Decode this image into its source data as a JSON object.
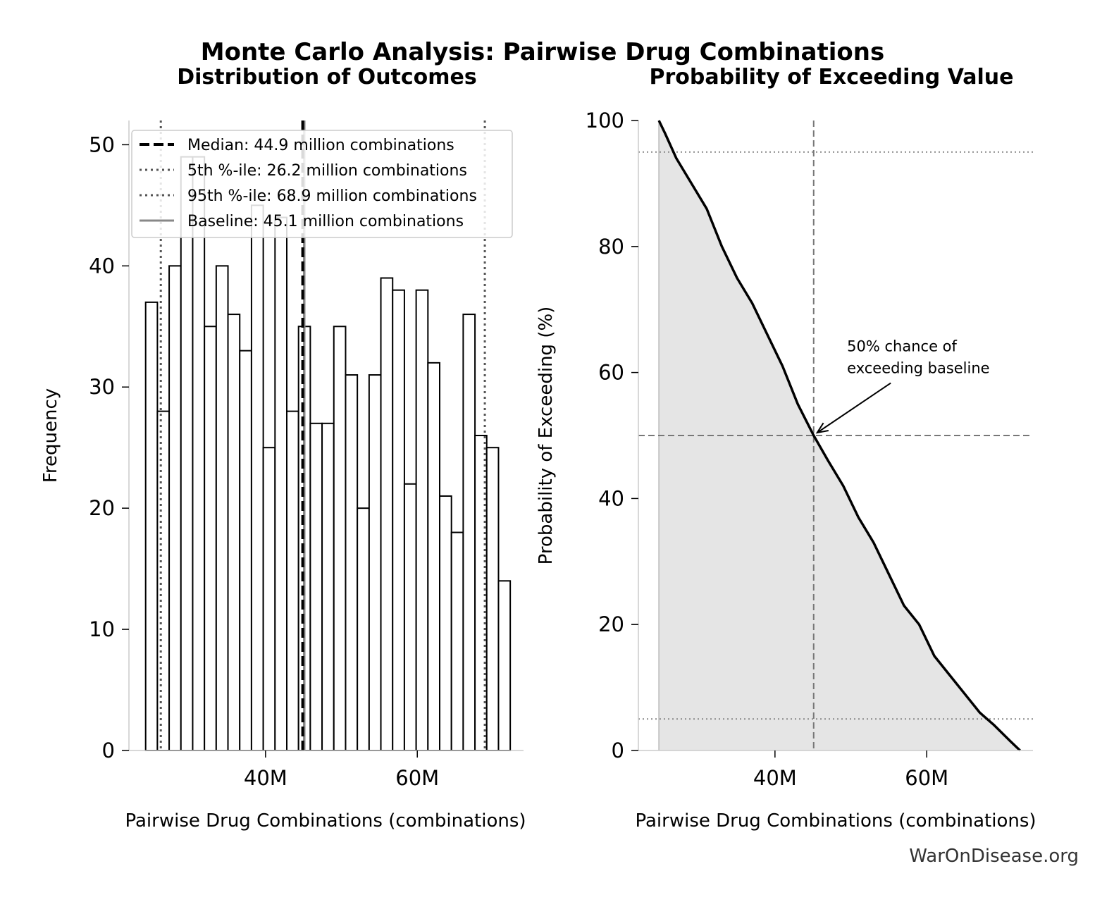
{
  "figure": {
    "title": "Monte Carlo Analysis: Pairwise Drug Combinations",
    "watermark": "WarOnDisease.org"
  },
  "chart_data": [
    {
      "type": "bar",
      "title": "Distribution of Outcomes",
      "xlabel": "Pairwise Drug Combinations (combinations)",
      "ylabel": "Frequency",
      "x_unit": "million combinations",
      "xlim": [
        22,
        74
      ],
      "ylim": [
        0,
        52
      ],
      "x_ticks": [
        40,
        60
      ],
      "x_tick_labels": [
        "40M",
        "60M"
      ],
      "y_ticks": [
        0,
        10,
        20,
        30,
        40,
        50
      ],
      "bin_width": 1.55,
      "bins_start": [
        24.2,
        25.75,
        27.3,
        28.85,
        30.4,
        31.95,
        33.5,
        35.05,
        36.6,
        38.15,
        39.7,
        41.25,
        42.8,
        44.35,
        45.9,
        47.45,
        49.0,
        50.55,
        52.1,
        53.65,
        55.2,
        56.75,
        58.3,
        59.85,
        61.4,
        62.95,
        64.5,
        66.05,
        67.6,
        69.15,
        70.7
      ],
      "values": [
        37,
        28,
        40,
        49,
        49,
        35,
        40,
        36,
        33,
        45,
        25,
        44,
        28,
        35,
        27,
        27,
        35,
        31,
        20,
        31,
        39,
        38,
        22,
        38,
        32,
        21,
        18,
        36,
        26,
        25,
        14
      ],
      "grid": false,
      "legend_position": "top-right",
      "reference_lines": [
        {
          "label": "Median: 44.9 million combinations",
          "value": 44.9,
          "style": "dashed",
          "color": "#000000"
        },
        {
          "label": "5th %-ile: 26.2 million combinations",
          "value": 26.2,
          "style": "dotted",
          "color": "#555555"
        },
        {
          "label": "95th %-ile: 68.9 million combinations",
          "value": 68.9,
          "style": "dotted",
          "color": "#555555"
        },
        {
          "label": "Baseline: 45.1 million combinations",
          "value": 45.1,
          "style": "solid",
          "color": "#888888"
        }
      ]
    },
    {
      "type": "area",
      "title": "Probability of Exceeding Value",
      "xlabel": "Pairwise Drug Combinations (combinations)",
      "ylabel": "Probability of Exceeding (%)",
      "x_unit": "million combinations",
      "xlim": [
        22,
        74
      ],
      "ylim": [
        0,
        100
      ],
      "x_ticks": [
        40,
        60
      ],
      "x_tick_labels": [
        "40M",
        "60M"
      ],
      "y_ticks": [
        0,
        20,
        40,
        60,
        80,
        100
      ],
      "grid": false,
      "x": [
        24.7,
        25.5,
        27,
        29,
        31,
        33,
        35,
        37,
        39,
        41,
        43,
        45.1,
        47,
        49,
        51,
        53,
        55,
        57,
        59,
        61,
        63,
        65,
        67,
        68.9,
        71,
        72.3
      ],
      "y": [
        100,
        98,
        94,
        90,
        86,
        80,
        75,
        71,
        66,
        61,
        55,
        50,
        46,
        42,
        37,
        33,
        28,
        23,
        20,
        15,
        12,
        9,
        6,
        4,
        1.5,
        0
      ],
      "reference_lines": [
        {
          "axis": "x",
          "value": 45.1,
          "style": "dashed",
          "color": "#777777"
        },
        {
          "axis": "y",
          "value": 50,
          "style": "dashed",
          "color": "#777777"
        },
        {
          "axis": "y",
          "value": 95,
          "style": "dotted",
          "color": "#888888"
        },
        {
          "axis": "y",
          "value": 5,
          "style": "dotted",
          "color": "#888888"
        }
      ],
      "annotation": {
        "text_lines": [
          "50% chance of",
          "exceeding baseline"
        ],
        "point": [
          45.1,
          50
        ],
        "text_at": [
          49.5,
          60
        ]
      }
    }
  ]
}
